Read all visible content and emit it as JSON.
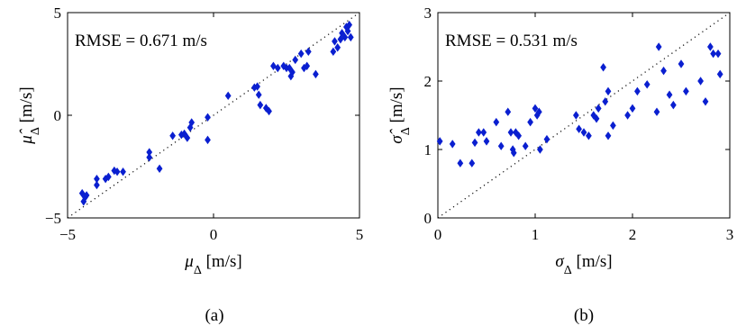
{
  "chart_data": [
    {
      "type": "scatter",
      "xlabel": "μ_Δ  [m/s]",
      "ylabel": "μ̂_Δ  [m/s]",
      "xlim": [
        -5,
        5
      ],
      "ylim": [
        -5,
        5
      ],
      "xticks": [
        "−5",
        "0",
        "5"
      ],
      "yticks": [
        "−5",
        "0",
        "5"
      ],
      "annotation": "RMSE = 0.671 m/s",
      "caption": "(a)",
      "reference_line": "y = x",
      "marker_color": "#0a1fd0",
      "points": [
        [
          -4.5,
          -3.8
        ],
        [
          -4.45,
          -4.2
        ],
        [
          -4.4,
          -4.0
        ],
        [
          -4.35,
          -3.9
        ],
        [
          -4.0,
          -3.1
        ],
        [
          -4.0,
          -3.4
        ],
        [
          -3.7,
          -3.1
        ],
        [
          -3.6,
          -3.0
        ],
        [
          -3.4,
          -2.7
        ],
        [
          -3.3,
          -2.75
        ],
        [
          -3.1,
          -2.75
        ],
        [
          -2.2,
          -1.8
        ],
        [
          -2.2,
          -2.05
        ],
        [
          -1.85,
          -2.6
        ],
        [
          -1.4,
          -1.0
        ],
        [
          -1.1,
          -0.95
        ],
        [
          -1.0,
          -0.9
        ],
        [
          -0.9,
          -1.1
        ],
        [
          -0.8,
          -0.6
        ],
        [
          -0.75,
          -0.35
        ],
        [
          -0.2,
          -0.1
        ],
        [
          -0.2,
          -1.2
        ],
        [
          0.5,
          0.95
        ],
        [
          1.4,
          1.35
        ],
        [
          1.5,
          1.4
        ],
        [
          1.55,
          1.0
        ],
        [
          1.6,
          0.5
        ],
        [
          1.8,
          0.35
        ],
        [
          1.9,
          0.2
        ],
        [
          2.05,
          2.4
        ],
        [
          2.2,
          2.3
        ],
        [
          2.4,
          2.4
        ],
        [
          2.5,
          2.3
        ],
        [
          2.6,
          2.3
        ],
        [
          2.65,
          1.9
        ],
        [
          2.7,
          2.1
        ],
        [
          2.8,
          2.7
        ],
        [
          3.0,
          3.0
        ],
        [
          3.1,
          2.3
        ],
        [
          3.2,
          2.4
        ],
        [
          3.25,
          3.1
        ],
        [
          3.5,
          2.0
        ],
        [
          4.1,
          3.1
        ],
        [
          4.15,
          3.6
        ],
        [
          4.25,
          3.3
        ],
        [
          4.35,
          3.7
        ],
        [
          4.4,
          4.0
        ],
        [
          4.5,
          3.8
        ],
        [
          4.55,
          4.3
        ],
        [
          4.6,
          4.1
        ],
        [
          4.65,
          4.4
        ],
        [
          4.7,
          3.8
        ]
      ]
    },
    {
      "type": "scatter",
      "xlabel": "σ_Δ  [m/s]",
      "ylabel": "σ̂_Δ  [m/s]",
      "xlim": [
        0,
        3
      ],
      "ylim": [
        0,
        3
      ],
      "xticks": [
        "0",
        "1",
        "2",
        "3"
      ],
      "yticks": [
        "0",
        "1",
        "2",
        "3"
      ],
      "annotation": "RMSE = 0.531 m/s",
      "caption": "(b)",
      "reference_line": "y = x",
      "marker_color": "#0a1fd0",
      "points": [
        [
          0.02,
          1.12
        ],
        [
          0.15,
          1.08
        ],
        [
          0.23,
          0.8
        ],
        [
          0.35,
          0.8
        ],
        [
          0.38,
          1.1
        ],
        [
          0.42,
          1.25
        ],
        [
          0.47,
          1.25
        ],
        [
          0.5,
          1.12
        ],
        [
          0.6,
          1.4
        ],
        [
          0.65,
          1.05
        ],
        [
          0.72,
          1.55
        ],
        [
          0.75,
          1.25
        ],
        [
          0.77,
          1.0
        ],
        [
          0.78,
          0.95
        ],
        [
          0.8,
          1.25
        ],
        [
          0.83,
          1.2
        ],
        [
          0.9,
          1.05
        ],
        [
          0.95,
          1.4
        ],
        [
          1.0,
          1.6
        ],
        [
          1.02,
          1.5
        ],
        [
          1.04,
          1.55
        ],
        [
          1.05,
          1.0
        ],
        [
          1.12,
          1.15
        ],
        [
          1.42,
          1.5
        ],
        [
          1.45,
          1.3
        ],
        [
          1.5,
          1.25
        ],
        [
          1.55,
          1.2
        ],
        [
          1.6,
          1.5
        ],
        [
          1.63,
          1.45
        ],
        [
          1.65,
          1.6
        ],
        [
          1.7,
          2.2
        ],
        [
          1.72,
          1.7
        ],
        [
          1.75,
          1.85
        ],
        [
          1.75,
          1.2
        ],
        [
          1.8,
          1.35
        ],
        [
          1.95,
          1.5
        ],
        [
          2.0,
          1.6
        ],
        [
          2.05,
          1.85
        ],
        [
          2.15,
          1.95
        ],
        [
          2.25,
          1.55
        ],
        [
          2.27,
          2.5
        ],
        [
          2.32,
          2.15
        ],
        [
          2.38,
          1.8
        ],
        [
          2.42,
          1.65
        ],
        [
          2.5,
          2.25
        ],
        [
          2.55,
          1.85
        ],
        [
          2.7,
          2.0
        ],
        [
          2.75,
          1.7
        ],
        [
          2.8,
          2.5
        ],
        [
          2.83,
          2.4
        ],
        [
          2.88,
          2.4
        ],
        [
          2.9,
          2.1
        ]
      ]
    }
  ]
}
